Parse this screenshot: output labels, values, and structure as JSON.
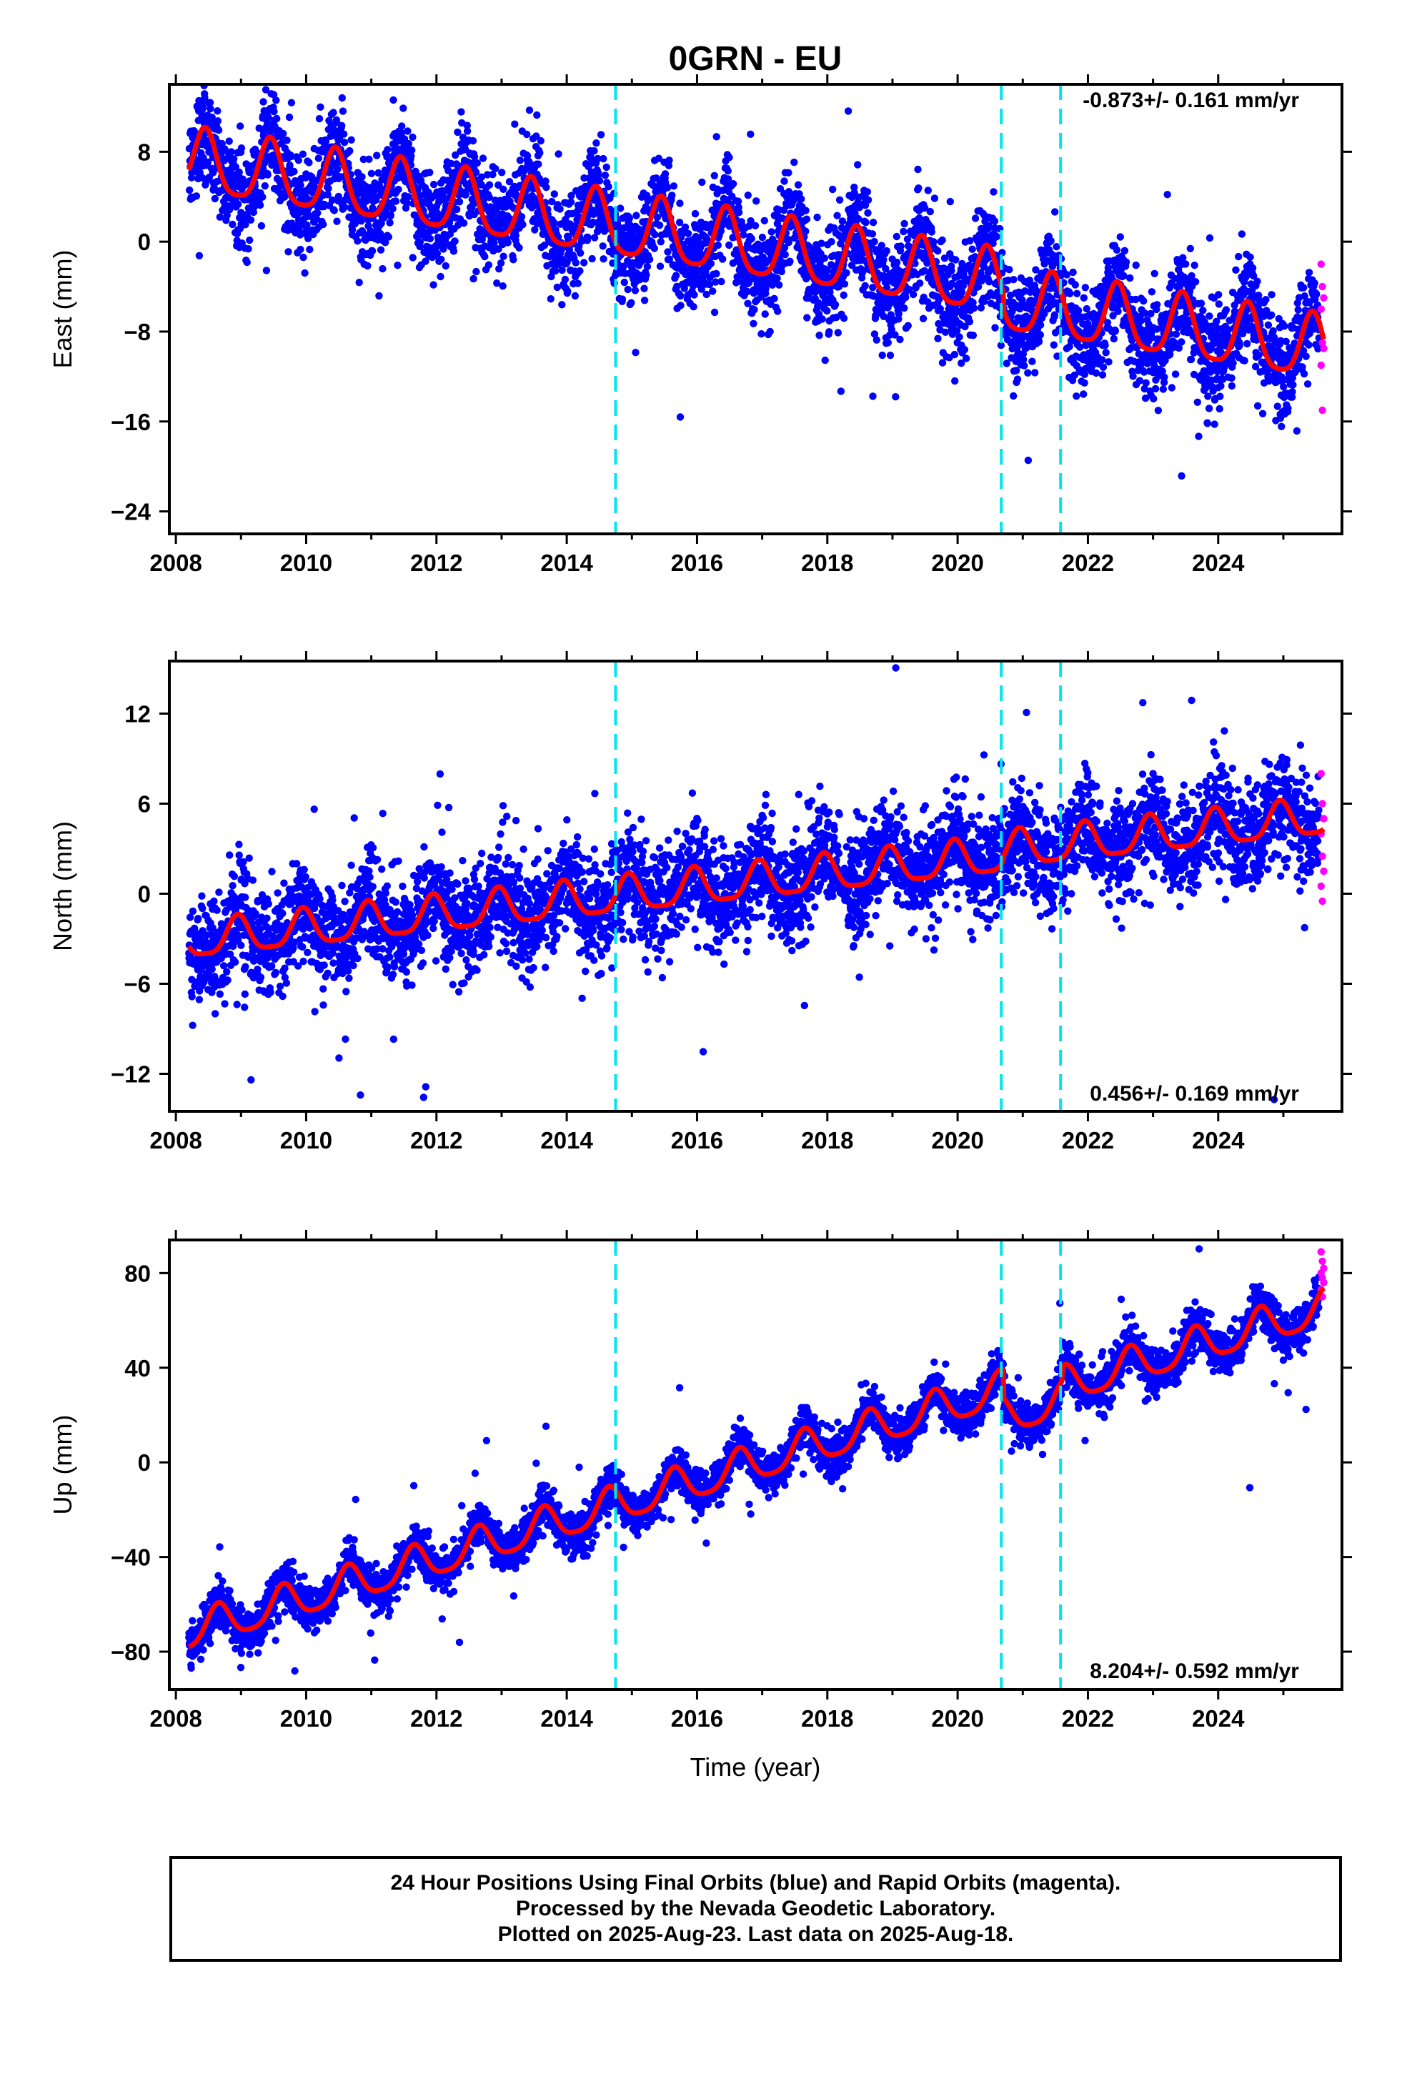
{
  "title": "0GRN - EU",
  "colors": {
    "final_orbits": "#0000ff",
    "rapid_orbits": "#ff00ff",
    "model_fit": "#ff0000",
    "equipment_change": "#00e5ee"
  },
  "chart_data": [
    {
      "type": "scatter",
      "component": "east",
      "ylabel": "East (mm)",
      "xlim": [
        2007.9,
        2025.9
      ],
      "ylim": [
        -26,
        14
      ],
      "xticks": [
        "2008",
        "2010",
        "2012",
        "2014",
        "2016",
        "2018",
        "2020",
        "2022",
        "2024"
      ],
      "yticks": [
        "8",
        "0",
        "−8",
        "−16",
        "−24"
      ],
      "rate_text": "-0.873+/- 0.161 mm/yr",
      "rate_mm_per_yr": -0.873,
      "rate_sigma": 0.161,
      "model": {
        "t0": 2008.2,
        "offset_at_t0": 7.0,
        "annual_amplitude": 2.8,
        "annual_peak_year_fraction": 0.45,
        "semiannual_amplitude": 0.6
      },
      "steps": [
        {
          "x": 2020.7,
          "size": -1.5
        }
      ],
      "equipment_changes": [
        2014.75,
        2020.67,
        2021.58
      ],
      "scatter_sigma": 2.2,
      "rapid_orbits_points": [
        -2,
        -4,
        -5,
        -6,
        -9,
        -9.5,
        -11,
        -15
      ]
    },
    {
      "type": "scatter",
      "component": "north",
      "ylabel": "North (mm)",
      "xlim": [
        2007.9,
        2025.9
      ],
      "ylim": [
        -14.5,
        15.5
      ],
      "xticks": [
        "2008",
        "2010",
        "2012",
        "2014",
        "2016",
        "2018",
        "2020",
        "2022",
        "2024"
      ],
      "yticks": [
        "12",
        "6",
        "0",
        "−6",
        "−12"
      ],
      "rate_text": "0.456+/- 0.169 mm/yr",
      "rate_mm_per_yr": 0.456,
      "rate_sigma": 0.169,
      "model": {
        "t0": 2008.2,
        "offset_at_t0": -3.2,
        "annual_amplitude": 1.2,
        "annual_peak_year_fraction": 0.95,
        "semiannual_amplitude": 0.3
      },
      "steps": [
        {
          "x": 2020.7,
          "size": 0.3
        }
      ],
      "equipment_changes": [
        2014.75,
        2020.67,
        2021.58
      ],
      "scatter_sigma": 1.7,
      "rapid_orbits_points": [
        8,
        6,
        5,
        4,
        2.5,
        1.5,
        0.5,
        -0.5
      ]
    },
    {
      "type": "scatter",
      "component": "up",
      "ylabel": "Up (mm)",
      "xlim": [
        2007.9,
        2025.9
      ],
      "ylim": [
        -96,
        94
      ],
      "xticks": [
        "2008",
        "2010",
        "2012",
        "2014",
        "2016",
        "2018",
        "2020",
        "2022",
        "2024"
      ],
      "yticks": [
        "80",
        "40",
        "0",
        "−40",
        "−80"
      ],
      "xlabel": "Time (year)",
      "rate_text": "8.204+/- 0.592 mm/yr",
      "rate_mm_per_yr": 8.204,
      "rate_sigma": 0.592,
      "model": {
        "t0": 2008.2,
        "offset_at_t0": -72,
        "annual_amplitude": 7.5,
        "annual_peak_year_fraction": 0.65,
        "semiannual_amplitude": 1.5
      },
      "steps": [
        {
          "x": 2020.7,
          "size": -12
        },
        {
          "x": 2021.6,
          "size": 6
        }
      ],
      "equipment_changes": [
        2014.75,
        2020.67,
        2021.58
      ],
      "scatter_sigma": 4.5,
      "rapid_orbits_points": [
        89,
        85,
        82,
        80,
        78,
        76,
        73,
        70
      ]
    }
  ],
  "caption": {
    "line1": "24 Hour Positions Using Final Orbits (blue) and Rapid Orbits (magenta).",
    "line2": "Processed by the Nevada Geodetic Laboratory.",
    "line3": "Plotted on 2025-Aug-23. Last data on 2025-Aug-18."
  }
}
